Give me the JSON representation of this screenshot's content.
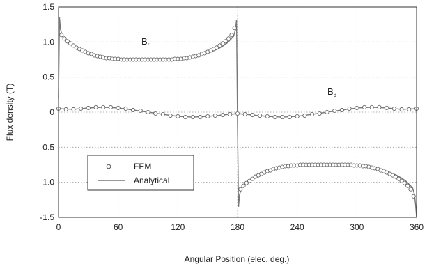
{
  "chart_data": {
    "type": "line",
    "xlabel": "Angular Position  (elec. deg.)",
    "ylabel": "Flux density (T)",
    "xlim": [
      0,
      360
    ],
    "ylim": [
      -1.5,
      1.5
    ],
    "xticks": [
      0,
      60,
      120,
      180,
      240,
      300,
      360
    ],
    "yticks": [
      -1.5,
      -1.0,
      -0.5,
      0,
      0.5,
      1.0,
      1.5
    ],
    "xtick_labels": [
      "0",
      "60",
      "120",
      "180",
      "240",
      "300",
      "360"
    ],
    "ytick_labels": [
      "-1.5",
      "-1.0",
      "-0.5",
      "0",
      "0.5",
      "1.0",
      "1.5"
    ],
    "grid": "dotted",
    "legend": {
      "placement": "lower-left",
      "entries": [
        {
          "name": "FEM",
          "marker": "circle"
        },
        {
          "name": "Analytical",
          "marker": "line"
        }
      ]
    },
    "annotations": [
      {
        "text": "B",
        "sub": "r",
        "x": 65,
        "y": 1.0
      },
      {
        "text": "B",
        "sub": "θ",
        "x": 195,
        "y": 0.28
      }
    ],
    "series": [
      {
        "name": "Analytical",
        "component": "Br",
        "x": [
          0,
          1,
          2,
          4,
          6,
          8,
          10,
          15,
          20,
          25,
          30,
          40,
          50,
          60,
          70,
          80,
          90,
          100,
          110,
          120,
          130,
          140,
          150,
          155,
          160,
          165,
          170,
          172,
          174,
          176,
          178,
          179,
          180,
          181,
          182,
          184,
          186,
          188,
          190,
          195,
          200,
          205,
          210,
          220,
          230,
          240,
          250,
          260,
          270,
          280,
          290,
          300,
          310,
          320,
          330,
          335,
          340,
          345,
          350,
          352,
          354,
          356,
          358,
          359,
          360
        ],
        "y": [
          0.2,
          1.35,
          1.18,
          1.08,
          1.05,
          1.02,
          0.99,
          0.94,
          0.9,
          0.87,
          0.84,
          0.8,
          0.77,
          0.76,
          0.75,
          0.75,
          0.75,
          0.75,
          0.75,
          0.76,
          0.77,
          0.8,
          0.84,
          0.87,
          0.9,
          0.94,
          0.99,
          1.02,
          1.05,
          1.08,
          1.18,
          1.32,
          -0.2,
          -1.35,
          -1.18,
          -1.08,
          -1.05,
          -1.02,
          -0.99,
          -0.94,
          -0.9,
          -0.87,
          -0.84,
          -0.8,
          -0.77,
          -0.76,
          -0.75,
          -0.75,
          -0.75,
          -0.75,
          -0.75,
          -0.76,
          -0.77,
          -0.8,
          -0.84,
          -0.87,
          -0.9,
          -0.94,
          -0.99,
          -1.02,
          -1.05,
          -1.08,
          -1.18,
          -1.32,
          -1.5
        ]
      },
      {
        "name": "Analytical",
        "component": "Bθ",
        "x": [
          0,
          15,
          30,
          45,
          60,
          75,
          90,
          105,
          120,
          135,
          150,
          165,
          180,
          195,
          210,
          225,
          240,
          255,
          270,
          285,
          300,
          315,
          330,
          345,
          360
        ],
        "y": [
          0.05,
          0.04,
          0.06,
          0.07,
          0.06,
          0.03,
          0.0,
          -0.03,
          -0.06,
          -0.07,
          -0.06,
          -0.04,
          -0.02,
          -0.04,
          -0.06,
          -0.07,
          -0.06,
          -0.03,
          0.0,
          0.03,
          0.06,
          0.07,
          0.06,
          0.04,
          0.05
        ]
      },
      {
        "name": "FEM",
        "component": "Br",
        "x": [
          3,
          6,
          9,
          12,
          15,
          18,
          21,
          24,
          27,
          30,
          33,
          36,
          39,
          42,
          45,
          48,
          51,
          54,
          57,
          60,
          63,
          66,
          69,
          72,
          75,
          78,
          81,
          84,
          87,
          90,
          93,
          96,
          99,
          102,
          105,
          108,
          111,
          114,
          117,
          120,
          123,
          126,
          129,
          132,
          135,
          138,
          141,
          144,
          147,
          150,
          153,
          156,
          159,
          162,
          165,
          168,
          171,
          174,
          177,
          183,
          186,
          189,
          192,
          195,
          198,
          201,
          204,
          207,
          210,
          213,
          216,
          219,
          222,
          225,
          228,
          231,
          234,
          237,
          240,
          243,
          246,
          249,
          252,
          255,
          258,
          261,
          264,
          267,
          270,
          273,
          276,
          279,
          282,
          285,
          288,
          291,
          294,
          297,
          300,
          303,
          306,
          309,
          312,
          315,
          318,
          321,
          324,
          327,
          330,
          333,
          336,
          339,
          342,
          345,
          348,
          351,
          354,
          357
        ],
        "y": [
          1.1,
          1.05,
          1.01,
          0.98,
          0.95,
          0.92,
          0.9,
          0.88,
          0.86,
          0.84,
          0.83,
          0.81,
          0.8,
          0.79,
          0.78,
          0.77,
          0.77,
          0.76,
          0.76,
          0.76,
          0.75,
          0.75,
          0.75,
          0.75,
          0.75,
          0.75,
          0.75,
          0.75,
          0.75,
          0.75,
          0.75,
          0.75,
          0.75,
          0.75,
          0.75,
          0.75,
          0.75,
          0.75,
          0.76,
          0.76,
          0.76,
          0.77,
          0.77,
          0.78,
          0.79,
          0.8,
          0.81,
          0.83,
          0.84,
          0.86,
          0.88,
          0.9,
          0.92,
          0.95,
          0.98,
          1.01,
          1.05,
          1.1,
          1.2,
          -1.1,
          -1.05,
          -1.01,
          -0.98,
          -0.95,
          -0.92,
          -0.9,
          -0.88,
          -0.86,
          -0.84,
          -0.83,
          -0.81,
          -0.8,
          -0.79,
          -0.78,
          -0.77,
          -0.77,
          -0.76,
          -0.76,
          -0.76,
          -0.75,
          -0.75,
          -0.75,
          -0.75,
          -0.75,
          -0.75,
          -0.75,
          -0.75,
          -0.75,
          -0.75,
          -0.75,
          -0.75,
          -0.75,
          -0.75,
          -0.75,
          -0.75,
          -0.75,
          -0.75,
          -0.76,
          -0.76,
          -0.76,
          -0.77,
          -0.77,
          -0.78,
          -0.79,
          -0.8,
          -0.81,
          -0.83,
          -0.84,
          -0.86,
          -0.88,
          -0.9,
          -0.92,
          -0.95,
          -0.98,
          -1.01,
          -1.05,
          -1.1,
          -1.2
        ]
      },
      {
        "name": "FEM",
        "component": "Bθ",
        "x": [
          0,
          7.5,
          15,
          22.5,
          30,
          37.5,
          45,
          52.5,
          60,
          67.5,
          75,
          82.5,
          90,
          97.5,
          105,
          112.5,
          120,
          127.5,
          135,
          142.5,
          150,
          157.5,
          165,
          172.5,
          180,
          187.5,
          195,
          202.5,
          210,
          217.5,
          225,
          232.5,
          240,
          247.5,
          255,
          262.5,
          270,
          277.5,
          285,
          292.5,
          300,
          307.5,
          315,
          322.5,
          330,
          337.5,
          345,
          352.5,
          360
        ],
        "y": [
          0.05,
          0.04,
          0.04,
          0.05,
          0.06,
          0.07,
          0.07,
          0.07,
          0.06,
          0.05,
          0.03,
          0.02,
          0.0,
          -0.02,
          -0.03,
          -0.05,
          -0.06,
          -0.07,
          -0.07,
          -0.07,
          -0.06,
          -0.05,
          -0.04,
          -0.03,
          -0.02,
          -0.03,
          -0.04,
          -0.05,
          -0.06,
          -0.07,
          -0.07,
          -0.07,
          -0.06,
          -0.05,
          -0.03,
          -0.02,
          0.0,
          0.02,
          0.03,
          0.05,
          0.06,
          0.07,
          0.07,
          0.07,
          0.06,
          0.05,
          0.04,
          0.04,
          0.05
        ]
      }
    ]
  }
}
